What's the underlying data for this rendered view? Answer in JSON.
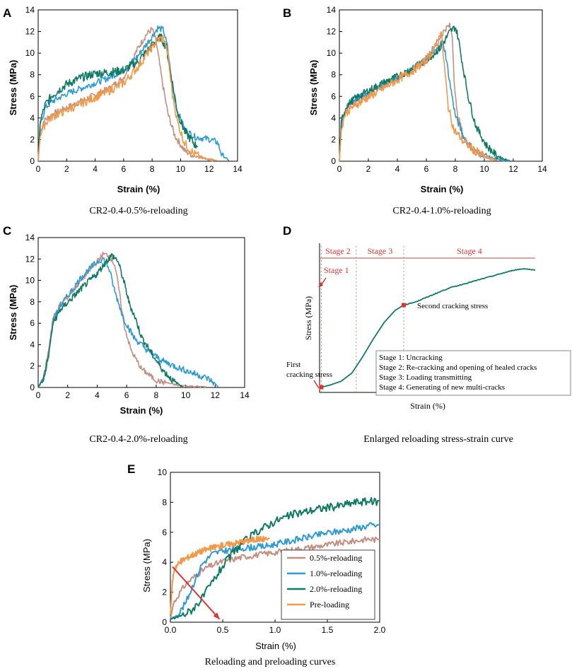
{
  "colors": {
    "rose": "#c48f80",
    "blue": "#2e9ad4",
    "green": "#117a65",
    "orange": "#f0994a",
    "red": "#e03232",
    "axis": "#000000"
  },
  "chart_data": [
    {
      "id": "A",
      "type": "line",
      "panel_label": "A",
      "caption": "CR2-0.4-0.5%-reloading",
      "xlabel": "Strain (%)",
      "ylabel": "Stress (MPa)",
      "xlim": [
        0,
        14
      ],
      "ylim": [
        0,
        14
      ],
      "xticks": [
        "0",
        "2",
        "4",
        "6",
        "8",
        "10",
        "12",
        "14"
      ],
      "yticks": [
        "0",
        "2",
        "4",
        "6",
        "8",
        "10",
        "12",
        "14"
      ],
      "series": [
        {
          "name": "rose",
          "color": "rose",
          "noise": 0.6,
          "x": [
            0,
            0.15,
            0.4,
            1,
            2,
            3,
            4,
            5,
            6,
            7,
            7.6,
            8.0,
            8.3,
            8.7,
            9.1,
            9.6,
            10.3,
            11,
            11.8,
            12.4
          ],
          "y": [
            0,
            2.8,
            3.8,
            4.4,
            5.0,
            5.6,
            6.2,
            6.8,
            7.8,
            10.5,
            11.8,
            12.3,
            11.0,
            7.5,
            4.5,
            2.4,
            1.0,
            0.5,
            0.25,
            0.1
          ]
        },
        {
          "name": "blue",
          "color": "blue",
          "noise": 0.6,
          "x": [
            0,
            0.15,
            0.5,
            1,
            2,
            3,
            4,
            5,
            6,
            7,
            8,
            8.4,
            8.8,
            9.1,
            9.4,
            9.8,
            10.3,
            11,
            12,
            12.6,
            12.9,
            13.4
          ],
          "y": [
            0,
            3.5,
            5.0,
            5.6,
            6.3,
            6.8,
            7.3,
            7.8,
            8.5,
            9.8,
            11.6,
            12.4,
            12.2,
            10.5,
            7.0,
            4.6,
            3.0,
            2.3,
            2.1,
            1.8,
            0.6,
            0.05
          ]
        },
        {
          "name": "green",
          "color": "green",
          "noise": 0.8,
          "x": [
            0,
            0.15,
            0.5,
            1,
            2,
            3,
            4,
            5,
            6,
            7,
            8,
            8.6,
            9.0,
            9.4,
            9.8,
            10.3,
            11.2
          ],
          "y": [
            0,
            3.8,
            5.3,
            6.2,
            7.2,
            7.8,
            8.2,
            8.3,
            8.5,
            9.3,
            10.8,
            11.6,
            10.6,
            7.5,
            4.5,
            2.8,
            1.3
          ]
        },
        {
          "name": "orange",
          "color": "orange",
          "noise": 0.8,
          "x": [
            0,
            0.15,
            0.5,
            1,
            2,
            3,
            4,
            5,
            6,
            7,
            7.8,
            8.4,
            8.8,
            9.1,
            9.4,
            9.8,
            10.3,
            10.9,
            11.6,
            12.6
          ],
          "y": [
            0,
            2.6,
            3.6,
            4.2,
            4.8,
            5.4,
            6.0,
            6.6,
            7.3,
            8.8,
            10.3,
            11.3,
            11.5,
            10.0,
            6.5,
            3.6,
            1.7,
            0.8,
            0.3,
            0.05
          ]
        }
      ]
    },
    {
      "id": "B",
      "type": "line",
      "panel_label": "B",
      "caption": "CR2-0.4-1.0%-reloading",
      "xlabel": "Strain (%)",
      "ylabel": "Stress (MPa)",
      "xlim": [
        0,
        14
      ],
      "ylim": [
        0,
        14
      ],
      "xticks": [
        "0",
        "2",
        "4",
        "6",
        "8",
        "10",
        "12",
        "14"
      ],
      "yticks": [
        "0",
        "2",
        "4",
        "6",
        "8",
        "10",
        "12",
        "14"
      ],
      "series": [
        {
          "name": "rose",
          "color": "rose",
          "noise": 0.6,
          "x": [
            0,
            0.15,
            0.4,
            1,
            2,
            3,
            4,
            5,
            6,
            6.8,
            7.3,
            7.6,
            7.8,
            7.9,
            8.1,
            8.6,
            9.3,
            10.2,
            11.5
          ],
          "y": [
            0,
            3.5,
            4.7,
            5.4,
            6.3,
            7.0,
            7.8,
            8.5,
            9.6,
            11.2,
            12.3,
            12.6,
            11.6,
            8.0,
            4.6,
            2.2,
            0.9,
            0.3,
            0.05
          ]
        },
        {
          "name": "blue",
          "color": "blue",
          "noise": 0.6,
          "x": [
            0,
            0.15,
            0.5,
            1,
            2,
            3,
            4,
            5,
            6,
            6.8,
            7.1,
            7.3,
            7.6,
            8.0,
            8.6,
            9.3,
            10.2,
            11.0,
            11.8
          ],
          "y": [
            0,
            3.8,
            5.0,
            5.7,
            6.4,
            7.2,
            7.8,
            8.6,
            9.4,
            10.5,
            11.2,
            10.2,
            7.5,
            4.3,
            2.2,
            1.1,
            0.5,
            0.15,
            0.05
          ]
        },
        {
          "name": "green",
          "color": "green",
          "noise": 0.7,
          "x": [
            0,
            0.15,
            0.5,
            1,
            2,
            3,
            4,
            5,
            6,
            7,
            7.6,
            8.0,
            8.2,
            8.5,
            8.9,
            9.4,
            10.1,
            10.9,
            11.6
          ],
          "y": [
            0,
            3.9,
            5.2,
            5.8,
            6.6,
            7.3,
            7.9,
            8.6,
            9.4,
            10.6,
            12.0,
            12.5,
            11.5,
            9.0,
            6.0,
            3.4,
            1.6,
            0.5,
            0.1
          ]
        },
        {
          "name": "orange",
          "color": "orange",
          "noise": 0.8,
          "x": [
            0,
            0.15,
            0.4,
            1,
            2,
            3,
            4,
            5,
            6,
            6.8,
            7.0,
            7.2,
            7.5,
            7.9,
            8.5,
            9.2,
            10.1,
            10.8
          ],
          "y": [
            0,
            3.2,
            4.5,
            5.2,
            6.0,
            6.8,
            7.6,
            8.4,
            9.4,
            11.0,
            12.4,
            9.5,
            5.2,
            3.0,
            2.0,
            1.2,
            0.4,
            0.1
          ]
        }
      ]
    },
    {
      "id": "C",
      "type": "line",
      "panel_label": "C",
      "caption": "CR2-0.4-2.0%-reloading",
      "xlabel": "Strain (%)",
      "ylabel": "Stress (MPa)",
      "xlim": [
        0,
        14
      ],
      "ylim": [
        0,
        14
      ],
      "xticks": [
        "0",
        "2",
        "4",
        "6",
        "8",
        "10",
        "12",
        "14"
      ],
      "yticks": [
        "0",
        "2",
        "4",
        "6",
        "8",
        "10",
        "12",
        "14"
      ],
      "series": [
        {
          "name": "rose",
          "color": "rose",
          "noise": 0.5,
          "x": [
            0,
            0.4,
            0.7,
            1.0,
            1.5,
            2,
            3,
            4,
            4.4,
            4.8,
            5.2,
            5.5,
            5.8,
            6.3,
            7.0,
            8.0,
            9.5,
            11.4
          ],
          "y": [
            0,
            1.2,
            3.5,
            6.5,
            7.8,
            8.5,
            10.2,
            11.8,
            12.5,
            12.4,
            11.5,
            9.0,
            6.0,
            3.5,
            1.8,
            0.7,
            0.2,
            0.05
          ]
        },
        {
          "name": "blue",
          "color": "blue",
          "noise": 0.6,
          "x": [
            0,
            0.4,
            0.7,
            1.0,
            1.5,
            2,
            3,
            4,
            4.4,
            4.8,
            5.2,
            5.8,
            6.5,
            7.5,
            8.5,
            9.5,
            10.5,
            11.5,
            11.9,
            12.2
          ],
          "y": [
            0,
            1.0,
            3.0,
            6.2,
            7.7,
            8.6,
            10.5,
            11.8,
            12.1,
            11.2,
            9.0,
            6.5,
            4.7,
            3.4,
            2.5,
            1.9,
            1.4,
            0.9,
            0.5,
            0.05
          ]
        },
        {
          "name": "green",
          "color": "green",
          "noise": 0.6,
          "x": [
            0,
            0.4,
            0.7,
            1.0,
            1.5,
            2,
            3,
            4,
            4.6,
            5.0,
            5.4,
            5.8,
            6.2,
            6.6,
            7.0,
            7.8,
            8.5,
            9.2,
            9.8
          ],
          "y": [
            0,
            1.0,
            3.0,
            6.0,
            7.3,
            8.0,
            9.4,
            10.7,
            11.8,
            12.4,
            11.9,
            10.0,
            7.8,
            6.5,
            4.8,
            3.0,
            1.6,
            0.6,
            0.1
          ]
        }
      ]
    },
    {
      "id": "D",
      "type": "line",
      "panel_label": "D",
      "caption": "Enlarged reloading stress-strain curve",
      "xlabel": "Strain (%)",
      "ylabel": "Stress (MPa)",
      "xlim": [
        0,
        1
      ],
      "ylim": [
        0,
        1
      ],
      "stages": [
        {
          "label": "Stage 2",
          "x_from": 0.0,
          "x_to": 0.17
        },
        {
          "label": "Stage 3",
          "x_from": 0.17,
          "x_to": 0.39
        },
        {
          "label": "Stage 4",
          "x_from": 0.39,
          "x_to": 1.0
        }
      ],
      "stage1_label": "Stage 1",
      "annotations": {
        "first_cracking": {
          "label_line1": "First",
          "label_line2": "cracking stress",
          "point": [
            0.008,
            0.035
          ]
        },
        "second_cracking": {
          "label": "Second cracking stress",
          "point": [
            0.39,
            0.585
          ]
        }
      },
      "legend_entries": [
        "Stage 1: Uncracking",
        "Stage 2: Re-cracking and opening of healed cracks",
        "Stage 3: Loading transmitting",
        "Stage 4: Generating of new multi-cracks"
      ],
      "series": [
        {
          "name": "curve",
          "color": "green",
          "noise": 0.0,
          "x": [
            0.008,
            0.05,
            0.1,
            0.15,
            0.2,
            0.25,
            0.3,
            0.35,
            0.39
          ],
          "y": [
            0.035,
            0.05,
            0.075,
            0.13,
            0.24,
            0.36,
            0.47,
            0.55,
            0.585
          ]
        },
        {
          "name": "curve-jagged",
          "color": "green",
          "noise": 0.07,
          "x": [
            0.39,
            0.45,
            0.5,
            0.55,
            0.6,
            0.65,
            0.7,
            0.75,
            0.8,
            0.85,
            0.9,
            0.95,
            1.0
          ],
          "y": [
            0.585,
            0.61,
            0.64,
            0.67,
            0.7,
            0.72,
            0.74,
            0.76,
            0.78,
            0.8,
            0.82,
            0.83,
            0.82
          ]
        }
      ]
    },
    {
      "id": "E",
      "type": "line",
      "panel_label": "E",
      "caption": "Reloading and preloading curves",
      "xlabel": "Strain (%)",
      "ylabel": "Stress (MPa)",
      "xlim": [
        0,
        2.0
      ],
      "ylim": [
        0,
        10
      ],
      "xticks": [
        "0.0",
        "0.5",
        "1.0",
        "1.5",
        "2.0"
      ],
      "yticks": [
        "0",
        "2",
        "4",
        "6",
        "8",
        "10"
      ],
      "legend": [
        "0.5%-reloading",
        "1.0%-reloading",
        "2.0%-reloading",
        "Pre-loading"
      ],
      "series": [
        {
          "name": "0.5%-reloading",
          "color": "rose",
          "noise": 0.55,
          "x": [
            0,
            0.03,
            0.08,
            0.15,
            0.25,
            0.35,
            0.5,
            0.7,
            0.9,
            1.1,
            1.3,
            1.5,
            1.7,
            1.9,
            2.0
          ],
          "y": [
            0.2,
            1.3,
            1.9,
            2.6,
            3.2,
            3.7,
            4.1,
            4.4,
            4.6,
            4.8,
            5.0,
            5.2,
            5.4,
            5.6,
            5.5
          ]
        },
        {
          "name": "1.0%-reloading",
          "color": "blue",
          "noise": 0.6,
          "x": [
            0,
            0.08,
            0.15,
            0.22,
            0.3,
            0.4,
            0.5,
            0.7,
            0.9,
            1.1,
            1.3,
            1.5,
            1.7,
            1.9,
            2.0
          ],
          "y": [
            0.2,
            0.6,
            1.4,
            2.6,
            3.9,
            4.6,
            4.8,
            5.0,
            5.1,
            5.4,
            5.7,
            6.0,
            6.2,
            6.5,
            6.5
          ]
        },
        {
          "name": "2.0%-reloading",
          "color": "green",
          "noise": 0.75,
          "x": [
            0,
            0.1,
            0.2,
            0.3,
            0.4,
            0.5,
            0.6,
            0.7,
            0.85,
            1.0,
            1.2,
            1.4,
            1.6,
            1.8,
            2.0
          ],
          "y": [
            0.2,
            0.45,
            0.85,
            1.6,
            2.7,
            3.8,
            4.7,
            5.4,
            6.2,
            6.8,
            7.3,
            7.6,
            7.8,
            8.1,
            8.1
          ]
        },
        {
          "name": "Pre-loading",
          "color": "orange",
          "noise": 0.6,
          "x": [
            0,
            0.02,
            0.04,
            0.07,
            0.12,
            0.2,
            0.3,
            0.45,
            0.6,
            0.75,
            0.85,
            0.95
          ],
          "y": [
            0.5,
            2.8,
            3.7,
            3.9,
            4.2,
            4.5,
            4.8,
            5.1,
            5.3,
            5.5,
            5.6,
            5.6
          ]
        }
      ],
      "arrow": {
        "from": [
          0.02,
          3.7
        ],
        "to": [
          0.47,
          0.2
        ]
      }
    }
  ]
}
